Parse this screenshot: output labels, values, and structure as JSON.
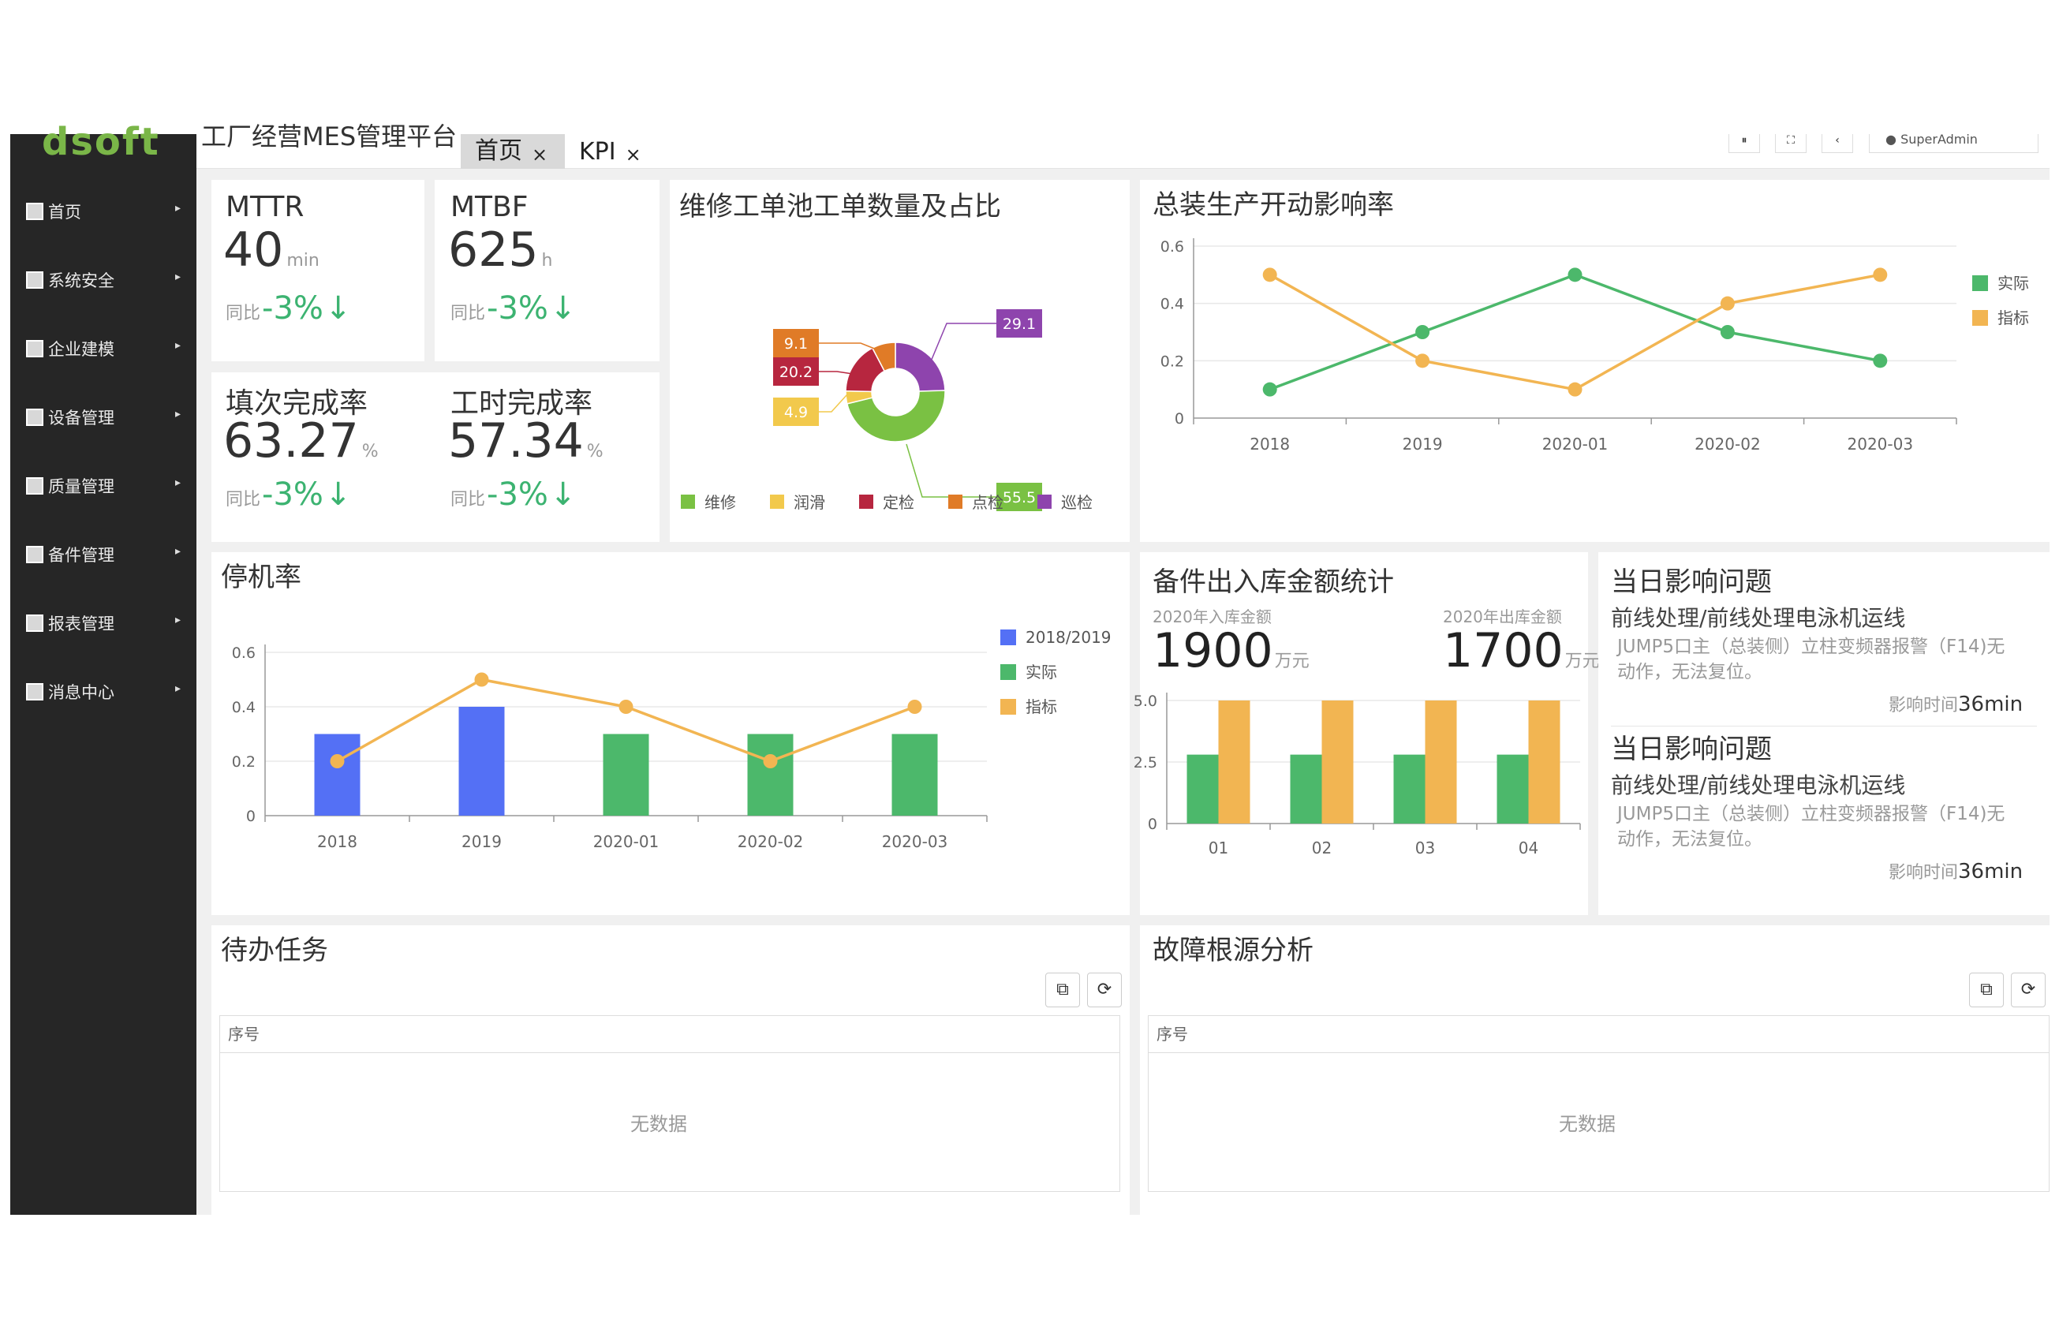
{
  "app": {
    "logo": "dsoft",
    "title": "工厂经营MES管理平台"
  },
  "tabs": [
    {
      "label": "首页",
      "close": "×"
    },
    {
      "label": "KPI",
      "close": "×"
    }
  ],
  "topbar": {
    "user": "SuperAdmin"
  },
  "sidebar": {
    "items": [
      {
        "label": "首页"
      },
      {
        "label": "系统安全"
      },
      {
        "label": "企业建模"
      },
      {
        "label": "设备管理"
      },
      {
        "label": "质量管理"
      },
      {
        "label": "备件管理"
      },
      {
        "label": "报表管理"
      },
      {
        "label": "消息中心"
      }
    ]
  },
  "kpis": [
    {
      "label": "MTTR",
      "value": "40",
      "unit": "min",
      "cmp_label": "同比",
      "cmp_value": "-3%",
      "arrow": "↓"
    },
    {
      "label": "MTBF",
      "value": "625",
      "unit": "h",
      "cmp_label": "同比",
      "cmp_value": "-3%",
      "arrow": "↓"
    },
    {
      "label": "填次完成率",
      "value": "63.27",
      "unit": "%",
      "cmp_label": "同比",
      "cmp_value": "-3%",
      "arrow": "↓"
    },
    {
      "label": "工时完成率",
      "value": "57.34",
      "unit": "%",
      "cmp_label": "同比",
      "cmp_value": "-3%",
      "arrow": "↓"
    }
  ],
  "donut": {
    "title": "维修工单池工单数量及占比",
    "chart_data": {
      "type": "pie",
      "slices": [
        {
          "name": "维修",
          "value": 55.5,
          "color": "#7ac143"
        },
        {
          "name": "润滑",
          "value": 4.9,
          "color": "#f2c94c"
        },
        {
          "name": "定检",
          "value": 20.2,
          "color": "#b7263f"
        },
        {
          "name": "点检",
          "value": 9.1,
          "color": "#e07b27"
        },
        {
          "name": "巡检",
          "value": 29.1,
          "color": "#8e44ad"
        }
      ]
    }
  },
  "impact": {
    "title": "总装生产开动影响率",
    "chart_data": {
      "type": "line",
      "categories": [
        "2018",
        "2019",
        "2020-01",
        "2020-02",
        "2020-03"
      ],
      "series": [
        {
          "name": "实际",
          "values": [
            0.1,
            0.3,
            0.5,
            0.3,
            0.2
          ],
          "color": "#4cb86b"
        },
        {
          "name": "指标",
          "values": [
            0.5,
            0.2,
            0.1,
            0.4,
            0.5
          ],
          "color": "#f2b552"
        }
      ],
      "ylim": [
        0,
        0.6
      ],
      "yticks": [
        "0",
        "0.2",
        "0.4",
        "0.6"
      ],
      "legend": "top-right"
    }
  },
  "downtime": {
    "title": "停机率",
    "chart_data": {
      "type": "bar",
      "categories": [
        "2018",
        "2019",
        "2020-01",
        "2020-02",
        "2020-03"
      ],
      "series": [
        {
          "name": "2018/2019",
          "values": [
            0.3,
            0.4,
            null,
            null,
            null
          ],
          "color": "#5470f5"
        },
        {
          "name": "实际",
          "values": [
            null,
            null,
            0.3,
            0.3,
            0.3
          ],
          "color": "#4cb86b"
        },
        {
          "name": "指标",
          "type": "line",
          "values": [
            0.2,
            0.5,
            0.4,
            0.2,
            0.4
          ],
          "color": "#f2b552"
        }
      ],
      "ylim": [
        0,
        0.6
      ],
      "yticks": [
        "0",
        "0.2",
        "0.4",
        "0.6"
      ],
      "legend": "top-right"
    }
  },
  "parts": {
    "title": "备件出入库金额统计",
    "in_label": "2020年入库金额",
    "in_value": "1900",
    "in_unit": "万元",
    "out_label": "2020年出库金额",
    "out_value": "1700",
    "out_unit": "万元",
    "chart_data": {
      "type": "bar",
      "categories": [
        "01",
        "02",
        "03",
        "04"
      ],
      "series": [
        {
          "values": [
            2.8,
            2.8,
            2.8,
            2.8
          ],
          "color": "#4cb86b"
        },
        {
          "values": [
            5.0,
            5.0,
            5.0,
            5.0
          ],
          "color": "#f2b552"
        }
      ],
      "ylim": [
        0,
        5.0
      ],
      "yticks": [
        "0",
        "2.5",
        "5.0"
      ]
    }
  },
  "issues": [
    {
      "title": "当日影响问题",
      "sub": "前线处理/前线处理电泳机运线",
      "desc": "JUMP5口主（总装侧）立柱变频器报警（F14)无动作，无法复位。",
      "time_label": "影响时间",
      "time_value": "36min"
    },
    {
      "title": "当日影响问题",
      "sub": "前线处理/前线处理电泳机运线",
      "desc": "JUMP5口主（总装侧）立柱变频器报警（F14)无动作，无法复位。",
      "time_label": "影响时间",
      "time_value": "36min"
    }
  ],
  "todo": {
    "title": "待办任务",
    "col": "序号",
    "empty": "无数据"
  },
  "fault": {
    "title": "故障根源分析",
    "col": "序号",
    "empty": "无数据"
  }
}
